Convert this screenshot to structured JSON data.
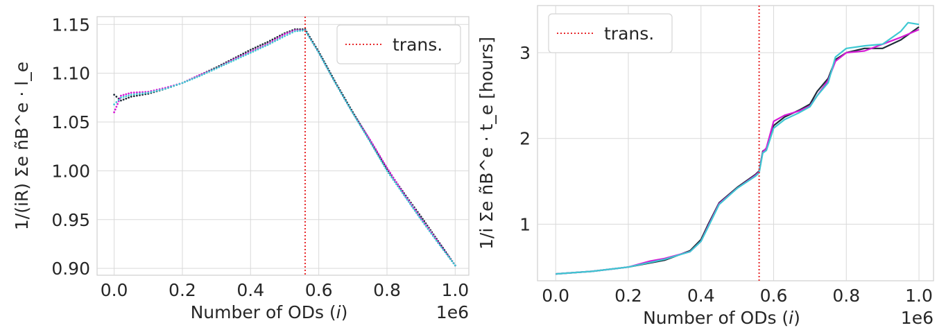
{
  "chart_data": [
    {
      "type": "scatter",
      "xlabel": "Number of ODs (i)",
      "ylabel": "1/(iR) Σe ñB^e · l_e",
      "x_offset_label": "1e6",
      "xlim": [
        -0.05,
        1.04
      ],
      "ylim": [
        0.893,
        1.158
      ],
      "xticks": [
        "0.0",
        "0.2",
        "0.4",
        "0.6",
        "0.8",
        "1.0"
      ],
      "yticks": [
        "0.90",
        "0.95",
        "1.00",
        "1.05",
        "1.10",
        "1.15"
      ],
      "grid": true,
      "legend": {
        "label": "trans.",
        "position": "top-right"
      },
      "transition_x": 0.56,
      "colors": {
        "transition": "#e8282b",
        "grid": "#d9d9d9",
        "axes": "#cfcfcf"
      },
      "series": [
        {
          "color": "#1f2c3a",
          "x": [
            0.0,
            0.02,
            0.05,
            0.1,
            0.15,
            0.2,
            0.25,
            0.3,
            0.35,
            0.4,
            0.45,
            0.5,
            0.53,
            0.56,
            0.6,
            0.65,
            0.7,
            0.75,
            0.8,
            0.85,
            0.9,
            0.95,
            1.0
          ],
          "y": [
            1.078,
            1.072,
            1.076,
            1.079,
            1.084,
            1.09,
            1.098,
            1.106,
            1.115,
            1.124,
            1.132,
            1.141,
            1.145,
            1.145,
            1.122,
            1.09,
            1.06,
            1.031,
            1.002,
            0.977,
            0.953,
            0.928,
            0.903
          ]
        },
        {
          "color": "#d61ad6",
          "x": [
            0.0,
            0.02,
            0.05,
            0.1,
            0.15,
            0.2,
            0.25,
            0.3,
            0.35,
            0.4,
            0.45,
            0.5,
            0.53,
            0.56,
            0.6,
            0.65,
            0.7,
            0.75,
            0.8,
            0.85,
            0.9,
            0.95,
            1.0
          ],
          "y": [
            1.06,
            1.077,
            1.08,
            1.081,
            1.085,
            1.09,
            1.098,
            1.105,
            1.114,
            1.122,
            1.13,
            1.14,
            1.144,
            1.144,
            1.121,
            1.089,
            1.059,
            1.032,
            1.003,
            0.976,
            0.951,
            0.927,
            0.903
          ]
        },
        {
          "color": "#3ec8d2",
          "x": [
            0.0,
            0.02,
            0.05,
            0.1,
            0.15,
            0.2,
            0.25,
            0.3,
            0.35,
            0.4,
            0.45,
            0.5,
            0.53,
            0.56,
            0.6,
            0.65,
            0.7,
            0.75,
            0.8,
            0.85,
            0.9,
            0.95,
            1.0
          ],
          "y": [
            1.068,
            1.075,
            1.078,
            1.08,
            1.084,
            1.09,
            1.097,
            1.105,
            1.113,
            1.121,
            1.129,
            1.138,
            1.143,
            1.144,
            1.121,
            1.089,
            1.059,
            1.03,
            1.0,
            0.975,
            0.95,
            0.926,
            0.903
          ]
        }
      ]
    },
    {
      "type": "line",
      "xlabel": "Number of ODs (i)",
      "ylabel": "1/i Σe ñB^e · t_e [hours]",
      "x_offset_label": "1e6",
      "xlim": [
        -0.05,
        1.04
      ],
      "ylim": [
        0.34,
        3.55
      ],
      "xticks": [
        "0.0",
        "0.2",
        "0.4",
        "0.6",
        "0.8",
        "1.0"
      ],
      "yticks": [
        "1",
        "2",
        "3"
      ],
      "grid": true,
      "legend": {
        "label": "trans.",
        "position": "top-left"
      },
      "transition_x": 0.56,
      "colors": {
        "transition": "#e8282b",
        "grid": "#d9d9d9",
        "axes": "#cfcfcf"
      },
      "series": [
        {
          "color": "#1f2c3a",
          "x": [
            0.0,
            0.1,
            0.2,
            0.3,
            0.37,
            0.4,
            0.42,
            0.45,
            0.5,
            0.55,
            0.56,
            0.57,
            0.58,
            0.6,
            0.63,
            0.67,
            0.7,
            0.72,
            0.75,
            0.77,
            0.8,
            0.85,
            0.9,
            0.95,
            1.0
          ],
          "y": [
            0.42,
            0.45,
            0.5,
            0.58,
            0.69,
            0.82,
            1.0,
            1.25,
            1.43,
            1.58,
            1.62,
            1.85,
            1.88,
            2.15,
            2.25,
            2.33,
            2.4,
            2.55,
            2.7,
            2.92,
            3.0,
            3.05,
            3.05,
            3.15,
            3.3
          ]
        },
        {
          "color": "#d61ad6",
          "x": [
            0.0,
            0.1,
            0.2,
            0.26,
            0.3,
            0.37,
            0.4,
            0.42,
            0.45,
            0.5,
            0.55,
            0.56,
            0.57,
            0.58,
            0.6,
            0.63,
            0.67,
            0.7,
            0.72,
            0.75,
            0.77,
            0.8,
            0.85,
            0.9,
            0.95,
            1.0
          ],
          "y": [
            0.42,
            0.45,
            0.5,
            0.57,
            0.6,
            0.68,
            0.8,
            0.98,
            1.24,
            1.42,
            1.57,
            1.61,
            1.84,
            1.89,
            2.2,
            2.27,
            2.32,
            2.38,
            2.5,
            2.68,
            2.9,
            3.0,
            3.02,
            3.1,
            3.18,
            3.27
          ]
        },
        {
          "color": "#3ec8d2",
          "x": [
            0.0,
            0.1,
            0.2,
            0.3,
            0.37,
            0.4,
            0.42,
            0.45,
            0.5,
            0.55,
            0.56,
            0.57,
            0.58,
            0.6,
            0.63,
            0.67,
            0.7,
            0.72,
            0.75,
            0.77,
            0.8,
            0.85,
            0.9,
            0.95,
            0.97,
            1.0
          ],
          "y": [
            0.42,
            0.45,
            0.5,
            0.59,
            0.68,
            0.8,
            0.97,
            1.23,
            1.42,
            1.56,
            1.6,
            1.83,
            1.86,
            2.12,
            2.22,
            2.3,
            2.37,
            2.5,
            2.65,
            2.95,
            3.05,
            3.08,
            3.1,
            3.25,
            3.35,
            3.33
          ]
        }
      ]
    }
  ]
}
